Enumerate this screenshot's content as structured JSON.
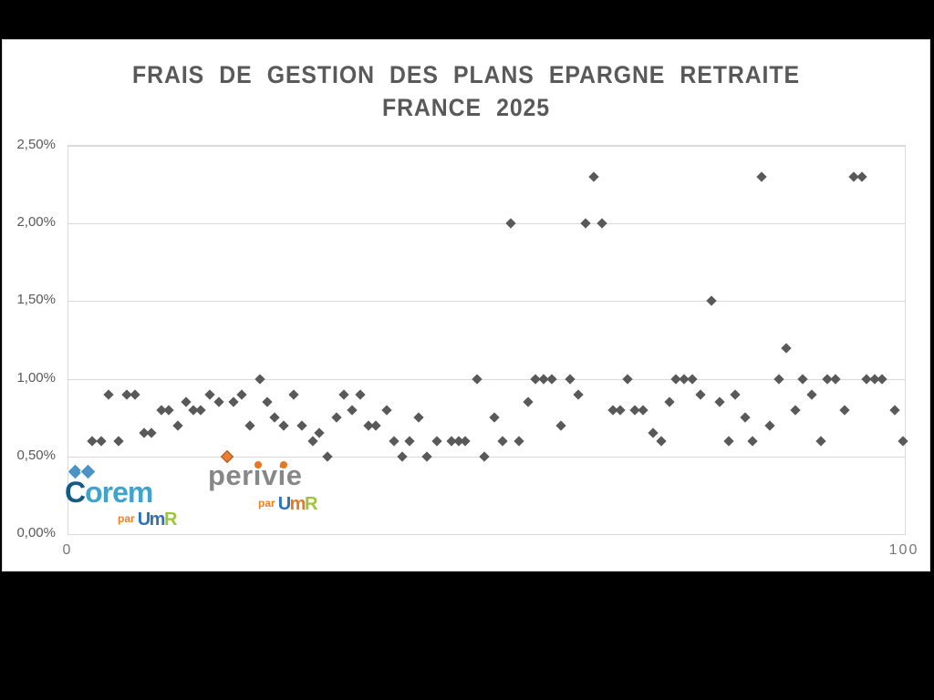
{
  "page": {
    "background_color": "#000000",
    "slide_background_color": "#ffffff"
  },
  "chart_data": {
    "type": "scatter",
    "title_lines": [
      "FRAIS DE GESTION DES PLANS EPARGNE RETRAITE",
      "FRANCE 2025"
    ],
    "title": "FRAIS DE GESTION DES PLANS EPARGNE RETRAITE FRANCE 2025",
    "xlabel": "",
    "ylabel": "",
    "xlim": [
      0,
      100
    ],
    "ylim_percent": [
      0,
      2.5
    ],
    "x_tick_labels": [
      "0",
      "100"
    ],
    "y_tick_labels": [
      "0,00%",
      "0,50%",
      "1,00%",
      "1,50%",
      "2,00%",
      "2,50%"
    ],
    "grid": "horizontal",
    "legend": "none",
    "grid_color": "#d9d9d9",
    "series": [
      {
        "name": "management-fees-gray",
        "marker": "diamond",
        "color": "#595959",
        "points": [
          [
            2.8,
            0.6
          ],
          [
            3.9,
            0.6
          ],
          [
            4.8,
            0.9
          ],
          [
            6.0,
            0.6
          ],
          [
            7.0,
            0.9
          ],
          [
            8.0,
            0.9
          ],
          [
            9.1,
            0.65
          ],
          [
            9.9,
            0.65
          ],
          [
            11.1,
            0.8
          ],
          [
            12.0,
            0.8
          ],
          [
            13.1,
            0.7
          ],
          [
            14.1,
            0.85
          ],
          [
            14.9,
            0.8
          ],
          [
            15.8,
            0.8
          ],
          [
            16.9,
            0.9
          ],
          [
            18.0,
            0.85
          ],
          [
            19.7,
            0.85
          ],
          [
            20.7,
            0.9
          ],
          [
            21.7,
            0.7
          ],
          [
            22.9,
            1.0
          ],
          [
            23.8,
            0.85
          ],
          [
            24.6,
            0.75
          ],
          [
            25.7,
            0.7
          ],
          [
            26.9,
            0.9
          ],
          [
            27.9,
            0.7
          ],
          [
            29.2,
            0.6
          ],
          [
            30.0,
            0.65
          ],
          [
            31.0,
            0.5
          ],
          [
            32.1,
            0.75
          ],
          [
            32.9,
            0.9
          ],
          [
            33.9,
            0.8
          ],
          [
            34.9,
            0.9
          ],
          [
            35.9,
            0.7
          ],
          [
            36.8,
            0.7
          ],
          [
            38.1,
            0.8
          ],
          [
            38.9,
            0.6
          ],
          [
            39.9,
            0.5
          ],
          [
            40.8,
            0.6
          ],
          [
            41.9,
            0.75
          ],
          [
            42.9,
            0.5
          ],
          [
            44.1,
            0.6
          ],
          [
            45.8,
            0.6
          ],
          [
            46.7,
            0.6
          ],
          [
            47.4,
            0.6
          ],
          [
            48.9,
            1.0
          ],
          [
            49.7,
            0.5
          ],
          [
            50.9,
            0.75
          ],
          [
            51.9,
            0.6
          ],
          [
            52.9,
            2.0
          ],
          [
            53.9,
            0.6
          ],
          [
            55.0,
            0.85
          ],
          [
            55.8,
            1.0
          ],
          [
            56.8,
            1.0
          ],
          [
            57.8,
            1.0
          ],
          [
            58.9,
            0.7
          ],
          [
            60.0,
            1.0
          ],
          [
            61.0,
            0.9
          ],
          [
            61.8,
            2.0
          ],
          [
            62.8,
            2.3
          ],
          [
            63.8,
            2.0
          ],
          [
            65.1,
            0.8
          ],
          [
            66.0,
            0.8
          ],
          [
            66.8,
            1.0
          ],
          [
            67.7,
            0.8
          ],
          [
            68.7,
            0.8
          ],
          [
            69.9,
            0.65
          ],
          [
            70.9,
            0.6
          ],
          [
            71.9,
            0.85
          ],
          [
            72.6,
            1.0
          ],
          [
            73.6,
            1.0
          ],
          [
            74.6,
            1.0
          ],
          [
            75.6,
            0.9
          ],
          [
            76.9,
            1.5
          ],
          [
            77.9,
            0.85
          ],
          [
            78.9,
            0.6
          ],
          [
            79.7,
            0.9
          ],
          [
            80.9,
            0.75
          ],
          [
            81.8,
            0.6
          ],
          [
            82.9,
            2.3
          ],
          [
            83.9,
            0.7
          ],
          [
            85.0,
            1.0
          ],
          [
            85.8,
            1.2
          ],
          [
            86.9,
            0.8
          ],
          [
            87.8,
            1.0
          ],
          [
            88.9,
            0.9
          ],
          [
            90.0,
            0.6
          ],
          [
            90.7,
            1.0
          ],
          [
            91.7,
            1.0
          ],
          [
            92.8,
            0.8
          ],
          [
            93.9,
            2.3
          ],
          [
            94.9,
            2.3
          ],
          [
            95.4,
            1.0
          ],
          [
            96.4,
            1.0
          ],
          [
            97.3,
            1.0
          ],
          [
            98.8,
            0.8
          ],
          [
            99.8,
            0.6
          ]
        ]
      },
      {
        "name": "highlight-orange",
        "marker": "diamond",
        "color": "#ED7D31",
        "border_color": "#a85415",
        "points": [
          [
            19.0,
            0.5
          ]
        ]
      }
    ]
  },
  "logos": {
    "corem": {
      "letter_c": "C",
      "letters_orem": "orem",
      "c_color": "#155a85",
      "orem_color": "#3fa4cd",
      "diamond_color": "#4a93c6",
      "par": "par",
      "par_color": "#f08019",
      "umr_u": "U",
      "umr_m": "m",
      "umr_r": "R",
      "umr_u_color": "#2d72b8",
      "umr_m_color": "#2d72b8",
      "umr_r_color": "#9dc43a"
    },
    "perivie": {
      "text": "perivie",
      "text_color": "#878787",
      "dot_color": "#e87722",
      "par": "par",
      "par_color": "#f08019",
      "umr_u": "U",
      "umr_m": "m",
      "umr_r": "R",
      "umr_u_color": "#2d72b8",
      "umr_m_color": "#e87722",
      "umr_r_color": "#9dc43a"
    }
  }
}
